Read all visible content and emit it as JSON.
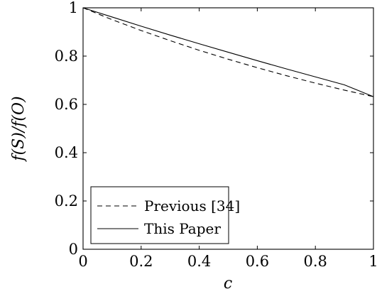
{
  "chart_data": {
    "type": "line",
    "xlabel": "c",
    "ylabel": "f(S)/f(O)",
    "xlim": [
      0,
      1
    ],
    "ylim": [
      0,
      1
    ],
    "x_ticks": [
      "0",
      "0.2",
      "0.4",
      "0.6",
      "0.8",
      "1"
    ],
    "y_ticks": [
      "0",
      "0.2",
      "0.4",
      "0.6",
      "0.8",
      "1"
    ],
    "x_tick_values": [
      0,
      0.2,
      0.4,
      0.6,
      0.8,
      1
    ],
    "y_tick_values": [
      0,
      0.2,
      0.4,
      0.6,
      0.8,
      1
    ],
    "grid": false,
    "legend_position": "bottom-left",
    "x": [
      0,
      0.1,
      0.2,
      0.3,
      0.4,
      0.5,
      0.6,
      0.7,
      0.8,
      0.9,
      1.0
    ],
    "series": [
      {
        "name": "Previous [34]",
        "style": "dashed",
        "color": "#000000",
        "values": [
          1.0,
          0.951,
          0.906,
          0.864,
          0.824,
          0.787,
          0.752,
          0.719,
          0.688,
          0.659,
          0.632
        ]
      },
      {
        "name": "This Paper",
        "style": "solid",
        "color": "#000000",
        "values": [
          1.0,
          0.962,
          0.924,
          0.887,
          0.851,
          0.816,
          0.781,
          0.747,
          0.714,
          0.681,
          0.632
        ]
      }
    ]
  }
}
